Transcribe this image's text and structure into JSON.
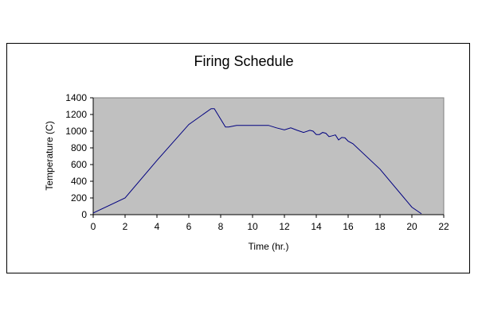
{
  "chart_data": {
    "type": "line",
    "title": "Firing Schedule",
    "xlabel": "Time (hr.)",
    "ylabel": "Temperature (C)",
    "xlim": [
      0,
      22
    ],
    "ylim": [
      0,
      1400
    ],
    "x_ticks": [
      0,
      2,
      4,
      6,
      8,
      10,
      12,
      14,
      16,
      18,
      20,
      22
    ],
    "y_ticks": [
      0,
      200,
      400,
      600,
      800,
      1000,
      1200,
      1400
    ],
    "grid": false,
    "legend": "none",
    "plot_background": "#c0c0c0",
    "line_color": "#000080",
    "series": [
      {
        "x": [
          0,
          2,
          4,
          6,
          7.4,
          7.6,
          8.3,
          8.5,
          9,
          10,
          11,
          11.5,
          12,
          12.4,
          12.8,
          13.2,
          13.6,
          13.8,
          14,
          14.2,
          14.4,
          14.6,
          14.8,
          15,
          15.2,
          15.4,
          15.6,
          15.8,
          16,
          16.3,
          18,
          20,
          20.6
        ],
        "y": [
          20,
          200,
          650,
          1080,
          1270,
          1270,
          1050,
          1050,
          1070,
          1070,
          1070,
          1040,
          1015,
          1040,
          1010,
          985,
          1010,
          1000,
          960,
          960,
          985,
          975,
          935,
          945,
          955,
          895,
          925,
          920,
          880,
          850,
          545,
          90,
          10
        ]
      }
    ]
  }
}
